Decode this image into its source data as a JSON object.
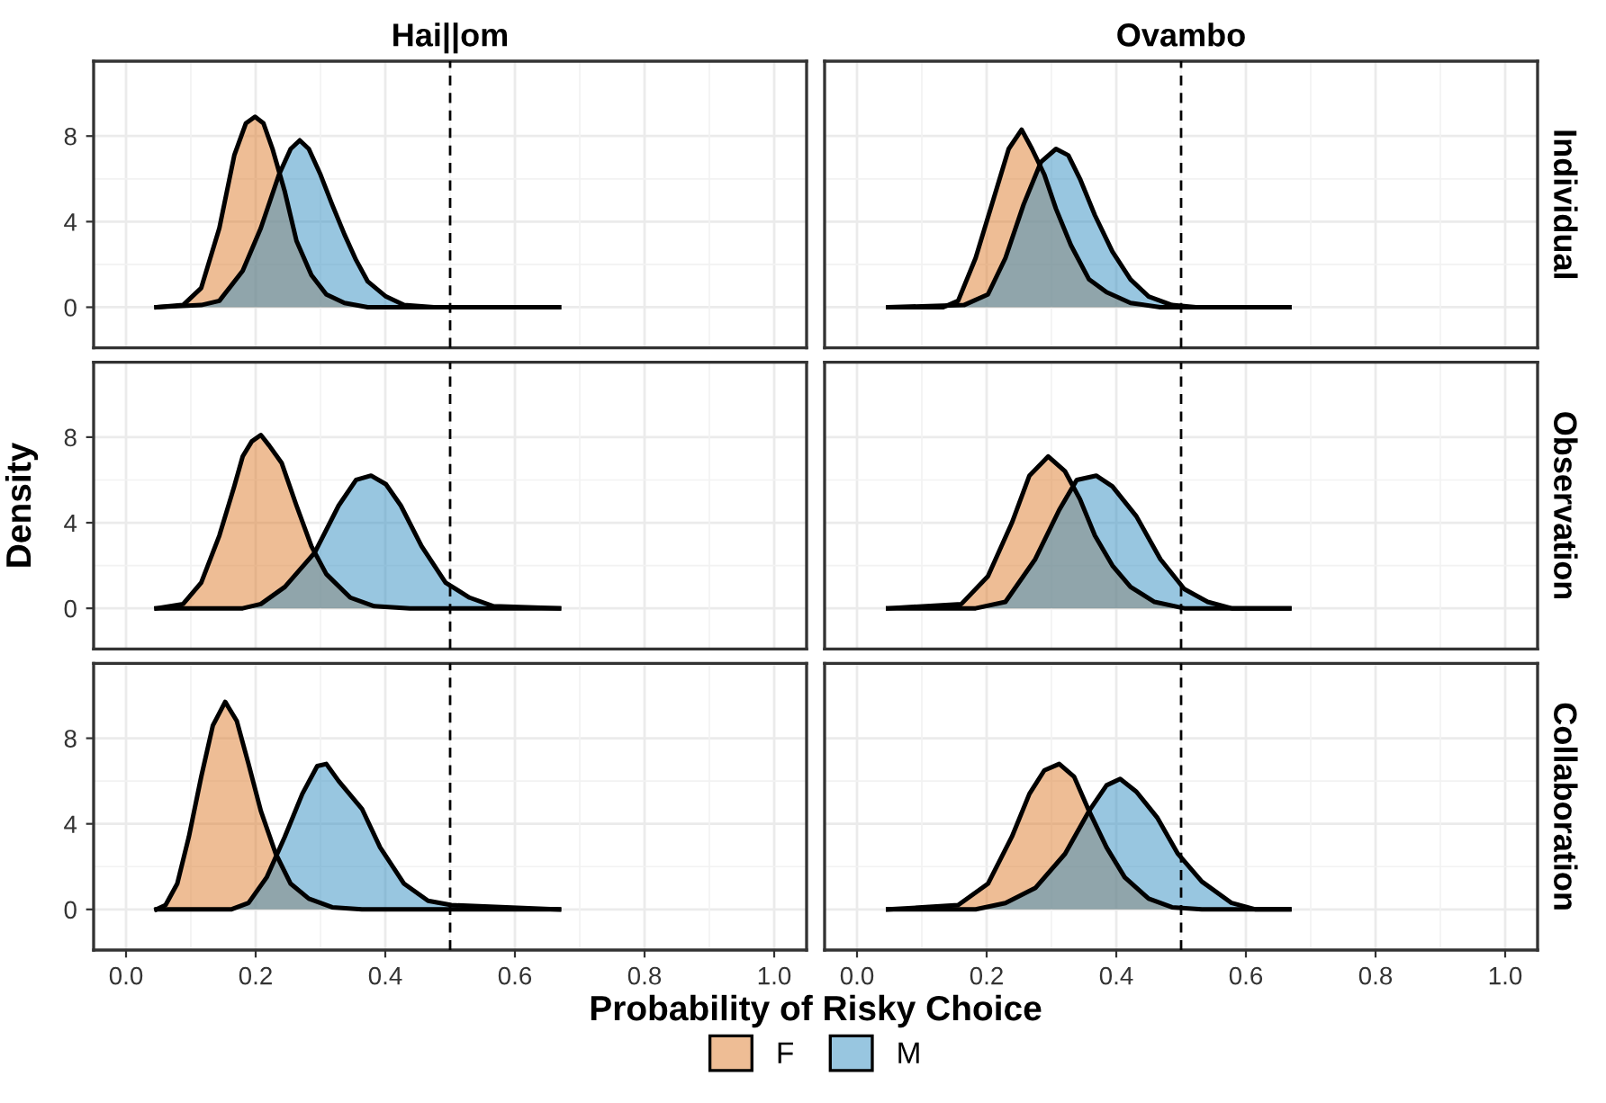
{
  "chart_data": [
    {
      "type": "area",
      "title": "Hai||om",
      "legend": "bottom",
      "xlim": [
        -0.05,
        1.05
      ],
      "ylim": [
        -1.9,
        11.5
      ],
      "xticks": [
        0,
        0.2,
        0.4,
        0.6,
        0.8,
        1
      ],
      "yticks": [
        0,
        4,
        8
      ],
      "grid": true,
      "tick_labels": "y",
      "ref_lines": [
        {
          "axis": "x",
          "value": 0.5,
          "color": "#000000",
          "line_style": "dashed"
        }
      ],
      "series": [
        {
          "name": "F",
          "color": "#dd7b2b",
          "x": [
            0.047,
            0.088,
            0.116,
            0.144,
            0.167,
            0.185,
            0.199,
            0.212,
            0.226,
            0.245,
            0.263,
            0.286,
            0.309,
            0.337,
            0.373,
            0.668
          ],
          "values": [
            0,
            0.1,
            0.9,
            3.7,
            7.1,
            8.6,
            8.9,
            8.6,
            7.4,
            5.4,
            3.1,
            1.5,
            0.6,
            0.2,
            0,
            0
          ]
        },
        {
          "name": "M",
          "color": "#318dc1",
          "x": [
            0.047,
            0.116,
            0.144,
            0.18,
            0.208,
            0.236,
            0.254,
            0.268,
            0.282,
            0.3,
            0.318,
            0.337,
            0.355,
            0.373,
            0.401,
            0.429,
            0.475,
            0.668
          ],
          "values": [
            0,
            0.1,
            0.3,
            1.7,
            3.7,
            6.2,
            7.4,
            7.8,
            7.4,
            6.2,
            4.8,
            3.4,
            2.2,
            1.2,
            0.5,
            0.1,
            0,
            0
          ]
        }
      ]
    },
    {
      "type": "area",
      "title": "Ovambo",
      "y2label": "Individual",
      "xlim": [
        -0.05,
        1.05
      ],
      "ylim": [
        -1.9,
        11.5
      ],
      "xticks": [
        0,
        0.2,
        0.4,
        0.6,
        0.8,
        1
      ],
      "yticks": [
        0,
        4,
        8
      ],
      "grid": true,
      "tick_labels": false,
      "ref_lines": [
        {
          "axis": "x",
          "value": 0.5,
          "color": "#000000",
          "line_style": "dashed"
        }
      ],
      "series": [
        {
          "color": "#dd7b2b",
          "x": [
            0.048,
            0.133,
            0.156,
            0.183,
            0.211,
            0.234,
            0.254,
            0.27,
            0.289,
            0.307,
            0.33,
            0.358,
            0.385,
            0.422,
            0.468,
            0.667
          ],
          "values": [
            0,
            0,
            0.3,
            2.3,
            5.1,
            7.4,
            8.3,
            7.4,
            6.2,
            4.6,
            2.9,
            1.3,
            0.7,
            0.2,
            0,
            0
          ]
        },
        {
          "color": "#318dc1",
          "x": [
            0.048,
            0.165,
            0.202,
            0.229,
            0.257,
            0.284,
            0.307,
            0.326,
            0.344,
            0.367,
            0.394,
            0.422,
            0.45,
            0.486,
            0.523,
            0.667
          ],
          "values": [
            0,
            0.1,
            0.6,
            2.3,
            4.8,
            6.8,
            7.4,
            7.1,
            6.0,
            4.3,
            2.6,
            1.3,
            0.5,
            0.1,
            0,
            0
          ]
        }
      ]
    },
    {
      "type": "area",
      "ylabel": "Density",
      "xlim": [
        -0.05,
        1.05
      ],
      "ylim": [
        -1.9,
        11.5
      ],
      "xticks": [
        0,
        0.2,
        0.4,
        0.6,
        0.8,
        1
      ],
      "yticks": [
        0,
        4,
        8
      ],
      "grid": true,
      "tick_labels": "y",
      "ref_lines": [
        {
          "axis": "x",
          "value": 0.5,
          "color": "#000000",
          "line_style": "dashed"
        }
      ],
      "series": [
        {
          "color": "#dd7b2b",
          "x": [
            0.047,
            0.088,
            0.116,
            0.144,
            0.167,
            0.18,
            0.194,
            0.208,
            0.221,
            0.24,
            0.263,
            0.286,
            0.309,
            0.346,
            0.383,
            0.438,
            0.668
          ],
          "values": [
            0,
            0.2,
            1.2,
            3.4,
            5.7,
            7.1,
            7.8,
            8.1,
            7.6,
            6.8,
            4.8,
            2.9,
            1.6,
            0.5,
            0.1,
            0,
            0
          ]
        },
        {
          "color": "#318dc1",
          "x": [
            0.047,
            0.18,
            0.208,
            0.245,
            0.291,
            0.328,
            0.355,
            0.378,
            0.401,
            0.424,
            0.456,
            0.493,
            0.53,
            0.567,
            0.668
          ],
          "values": [
            0,
            0,
            0.2,
            1.0,
            2.6,
            4.8,
            6.0,
            6.2,
            5.8,
            4.8,
            2.9,
            1.2,
            0.5,
            0.1,
            0
          ]
        }
      ]
    },
    {
      "type": "area",
      "y2label": "Observation",
      "xlim": [
        -0.05,
        1.05
      ],
      "ylim": [
        -1.9,
        11.5
      ],
      "xticks": [
        0,
        0.2,
        0.4,
        0.6,
        0.8,
        1
      ],
      "yticks": [
        0,
        4,
        8
      ],
      "grid": true,
      "tick_labels": false,
      "ref_lines": [
        {
          "axis": "x",
          "value": 0.5,
          "color": "#000000",
          "line_style": "dashed"
        }
      ],
      "series": [
        {
          "color": "#dd7b2b",
          "x": [
            0.048,
            0.161,
            0.202,
            0.239,
            0.266,
            0.295,
            0.321,
            0.344,
            0.367,
            0.394,
            0.422,
            0.459,
            0.505,
            0.667
          ],
          "values": [
            0,
            0.2,
            1.5,
            4.0,
            6.2,
            7.1,
            6.4,
            5.1,
            3.4,
            2.0,
            1.0,
            0.3,
            0,
            0
          ]
        },
        {
          "color": "#318dc1",
          "x": [
            0.048,
            0.183,
            0.229,
            0.275,
            0.312,
            0.339,
            0.369,
            0.394,
            0.431,
            0.468,
            0.505,
            0.541,
            0.578,
            0.667
          ],
          "values": [
            0,
            0,
            0.3,
            2.3,
            4.6,
            6.0,
            6.2,
            5.7,
            4.3,
            2.3,
            0.9,
            0.3,
            0,
            0
          ]
        }
      ]
    },
    {
      "type": "area",
      "xlabel": "Probability of Risky Choice",
      "xlim": [
        -0.05,
        1.05
      ],
      "ylim": [
        -1.9,
        11.5
      ],
      "xticks": [
        {
          "value": 0,
          "label": "0.0"
        },
        {
          "value": 0.2,
          "label": "0.2"
        },
        {
          "value": 0.4,
          "label": "0.4"
        },
        {
          "value": 0.6,
          "label": "0.6"
        },
        {
          "value": 0.8,
          "label": "0.8"
        },
        {
          "value": 1,
          "label": "1.0"
        }
      ],
      "yticks": [
        0,
        4,
        8
      ],
      "grid": true,
      "ref_lines": [
        {
          "axis": "x",
          "value": 0.5,
          "color": "#000000",
          "line_style": "dashed"
        }
      ],
      "series": [
        {
          "color": "#dd7b2b",
          "x": [
            0.047,
            0.061,
            0.079,
            0.097,
            0.116,
            0.134,
            0.153,
            0.171,
            0.189,
            0.208,
            0.231,
            0.254,
            0.282,
            0.318,
            0.364,
            0.668
          ],
          "values": [
            0,
            0.2,
            1.2,
            3.4,
            6.2,
            8.6,
            9.7,
            8.8,
            6.8,
            4.6,
            2.6,
            1.2,
            0.5,
            0.1,
            0,
            0
          ]
        },
        {
          "color": "#318dc1",
          "x": [
            0.047,
            0.162,
            0.189,
            0.217,
            0.245,
            0.272,
            0.295,
            0.309,
            0.328,
            0.364,
            0.392,
            0.429,
            0.466,
            0.502,
            0.668
          ],
          "values": [
            0,
            0,
            0.3,
            1.5,
            3.4,
            5.4,
            6.7,
            6.8,
            6.0,
            4.7,
            2.9,
            1.2,
            0.4,
            0.2,
            0
          ]
        }
      ]
    },
    {
      "type": "area",
      "y2label": "Collaboration",
      "xlim": [
        -0.05,
        1.05
      ],
      "ylim": [
        -1.9,
        11.5
      ],
      "xticks": [
        {
          "value": 0,
          "label": "0.0"
        },
        {
          "value": 0.2,
          "label": "0.2"
        },
        {
          "value": 0.4,
          "label": "0.4"
        },
        {
          "value": 0.6,
          "label": "0.6"
        },
        {
          "value": 0.8,
          "label": "0.8"
        },
        {
          "value": 1,
          "label": "1.0"
        }
      ],
      "yticks": [
        0,
        4,
        8
      ],
      "grid": true,
      "tick_labels": "x",
      "ref_lines": [
        {
          "axis": "x",
          "value": 0.5,
          "color": "#000000",
          "line_style": "dashed"
        }
      ],
      "series": [
        {
          "color": "#dd7b2b",
          "x": [
            0.048,
            0.156,
            0.202,
            0.239,
            0.266,
            0.289,
            0.312,
            0.335,
            0.358,
            0.385,
            0.413,
            0.45,
            0.486,
            0.532,
            0.667
          ],
          "values": [
            0,
            0.2,
            1.2,
            3.4,
            5.4,
            6.5,
            6.8,
            6.2,
            4.6,
            2.9,
            1.5,
            0.5,
            0.1,
            0,
            0
          ]
        },
        {
          "color": "#318dc1",
          "x": [
            0.048,
            0.183,
            0.229,
            0.275,
            0.321,
            0.358,
            0.385,
            0.406,
            0.431,
            0.463,
            0.495,
            0.532,
            0.578,
            0.615,
            0.667
          ],
          "values": [
            0,
            0,
            0.3,
            1.0,
            2.6,
            4.6,
            5.8,
            6.1,
            5.5,
            4.3,
            2.6,
            1.3,
            0.3,
            0,
            0
          ]
        }
      ]
    }
  ]
}
